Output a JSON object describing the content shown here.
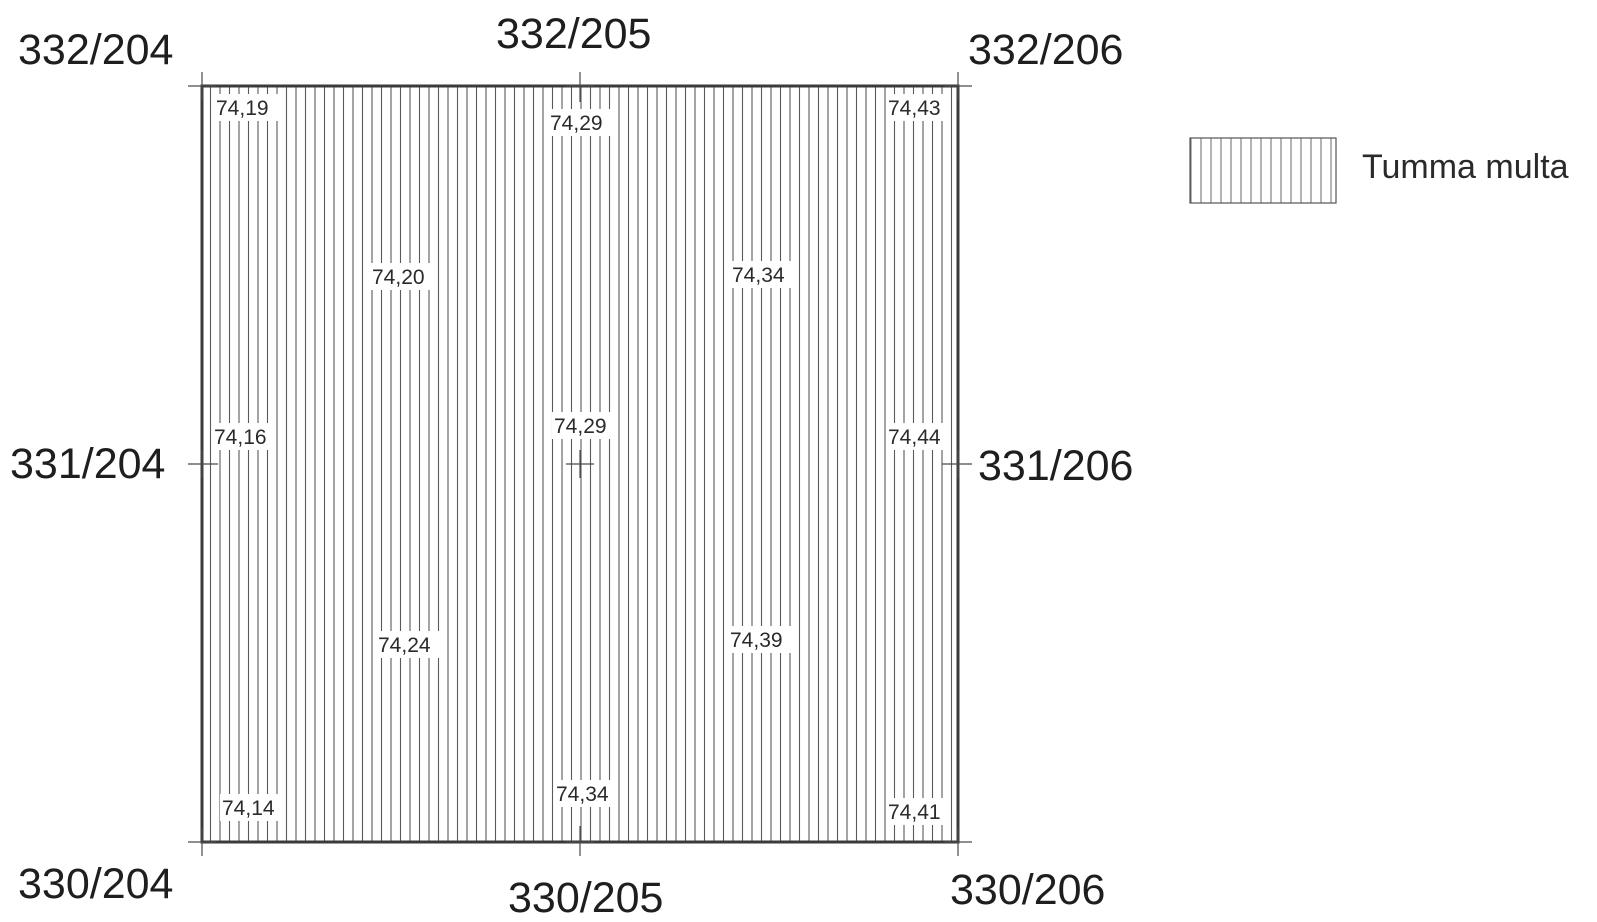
{
  "grid_coordinates": {
    "top_left": "332/204",
    "top_center": "332/205",
    "top_right": "332/206",
    "middle_left": "331/204",
    "middle_right": "331/206",
    "bottom_left": "330/204",
    "bottom_center": "330/205",
    "bottom_right": "330/206"
  },
  "elevations": {
    "top_left": "74,19",
    "top_center": "74,29",
    "top_right": "74,43",
    "upper_left_quarter": "74,20",
    "upper_right_quarter": "74,34",
    "middle_left": "74,16",
    "center": "74,29",
    "middle_right": "74,44",
    "lower_left_quarter": "74,24",
    "lower_right_quarter": "74,39",
    "bottom_left": "74,14",
    "bottom_center": "74,34",
    "bottom_right": "74,41"
  },
  "legend": {
    "label": "Tumma multa"
  },
  "colors": {
    "outline": "#3a3a3a",
    "hatch": "#5a5a5a",
    "text": "#1e1e1e",
    "background": "#ffffff"
  }
}
